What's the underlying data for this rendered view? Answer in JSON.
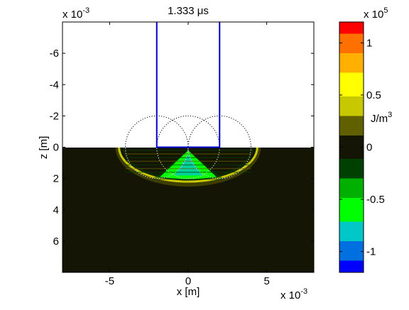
{
  "chart_data": {
    "type": "heatmap",
    "title": "1.333 μs",
    "xlabel": "x [m]",
    "ylabel": "z [m]",
    "x_exponent_label": "x 10",
    "x_exponent": "-3",
    "y_exponent_label": "x 10",
    "y_exponent": "-3",
    "xlim": [
      -0.008,
      0.008
    ],
    "zlim": [
      -0.008,
      0.008
    ],
    "y_reversed": true,
    "x_ticks": [
      -0.005,
      0,
      0.005
    ],
    "x_tick_labels": [
      "-5",
      "0",
      "5"
    ],
    "y_ticks": [
      -0.006,
      -0.004,
      -0.002,
      0,
      0.002,
      0.004,
      0.006
    ],
    "y_tick_labels": [
      "-6",
      "-4",
      "-2",
      "0",
      "2",
      "4",
      "6"
    ],
    "surface_z": 0,
    "upper_region_color": "#ffffff",
    "background_value": 0,
    "transducer": {
      "color": "#0000cc",
      "left_x": -0.002,
      "right_x": 0.002,
      "top_z": -0.008,
      "bottom_z": 0
    },
    "circles": [
      {
        "cx": -0.002,
        "cz": 0,
        "r": 0.002
      },
      {
        "cx": 0,
        "cz": 0,
        "r": 0.002
      },
      {
        "cx": 0.002,
        "cz": 0,
        "r": 0.002
      }
    ],
    "energy_features": [
      {
        "kind": "front",
        "shape": "half-ellipse",
        "cx": 0,
        "cz": 0,
        "rx": 0.0044,
        "rz": 0.0022,
        "value": 0.35
      },
      {
        "kind": "cone",
        "apex_x": 0,
        "apex_z": 0.0002,
        "half_width": 0.0018,
        "base_z": 0.0019,
        "value": -0.55
      },
      {
        "kind": "streaks",
        "x_range": [
          -0.004,
          0.004
        ],
        "z_range": [
          0.0002,
          0.0016
        ],
        "value": 0.15
      }
    ],
    "colorbar": {
      "label": "J/m",
      "label_superscript": "3",
      "exponent_label": "x 10",
      "exponent": "5",
      "range": [
        -1.2,
        1.2
      ],
      "ticks": [
        -1,
        -0.5,
        0,
        0.5,
        1
      ],
      "tick_labels": [
        "-1",
        "-0.5",
        "0",
        "0.5",
        "1"
      ],
      "colors": [
        "#0000ff",
        "#0070e0",
        "#00c8c8",
        "#00ff00",
        "#00b000",
        "#004000",
        "#151505",
        "#606000",
        "#c8c800",
        "#ffff00",
        "#ffb000",
        "#ff7000",
        "#ff0000"
      ]
    },
    "grid": false
  }
}
